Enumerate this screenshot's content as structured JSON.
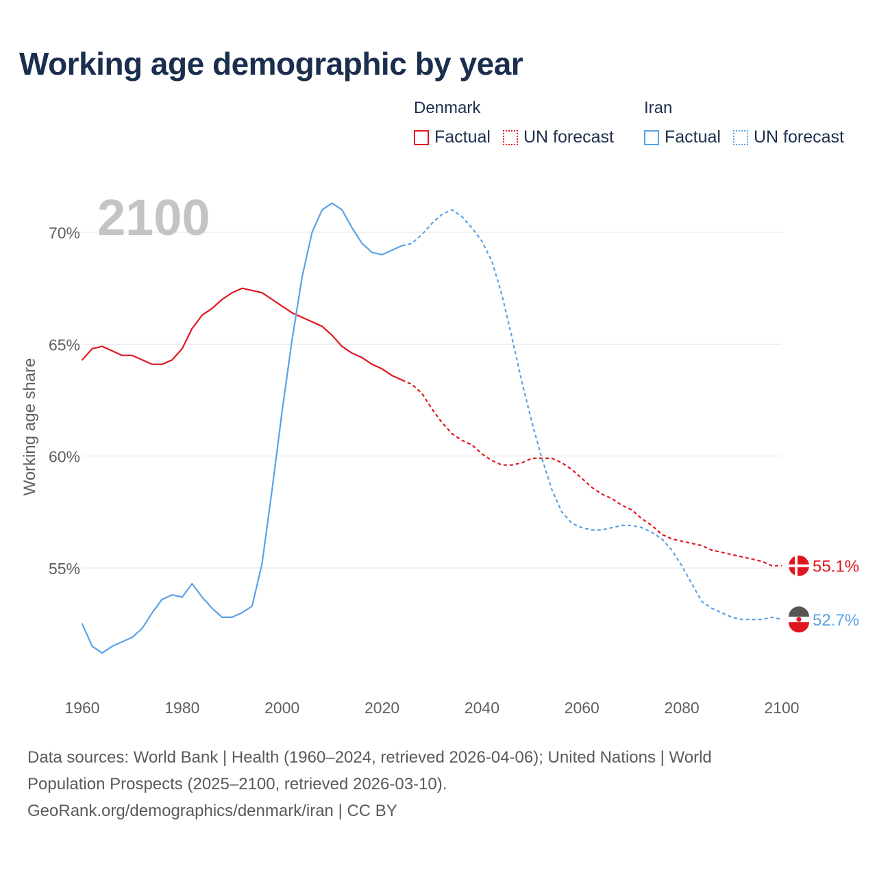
{
  "title": "Working age demographic by year",
  "legend": {
    "groups": [
      {
        "country": "Denmark",
        "color": "#e0161f",
        "factual_label": "Factual",
        "forecast_label": "UN forecast"
      },
      {
        "country": "Iran",
        "color": "#5aa2e6",
        "factual_label": "Factual",
        "forecast_label": "UN forecast"
      }
    ]
  },
  "year_watermark": "2100",
  "footer": {
    "line1": "Data sources: World Bank | Health (1960–2024, retrieved 2026-04-06); United Nations | World",
    "line2": "Population Prospects (2025–2100, retrieved 2026-03-10).",
    "line3": "GeoRank.org/demographics/denmark/iran | CC BY"
  },
  "chart_data": {
    "type": "line",
    "title": "Working age demographic by year",
    "xlabel": "",
    "ylabel": "Working age share",
    "xlim": [
      1960,
      2100
    ],
    "ylim": [
      50.0,
      72.0
    ],
    "x_ticks": [
      1960,
      1980,
      2000,
      2020,
      2040,
      2060,
      2080,
      2100
    ],
    "y_ticks": [
      {
        "value": 55,
        "label": "55%"
      },
      {
        "value": 60,
        "label": "60%"
      },
      {
        "value": 65,
        "label": "65%"
      },
      {
        "value": 70,
        "label": "70%"
      }
    ],
    "grid": true,
    "series": [
      {
        "name": "Denmark",
        "color": "#e0161f",
        "end_label": "55.1%",
        "factual": {
          "x": [
            1960,
            1962,
            1964,
            1966,
            1968,
            1970,
            1972,
            1974,
            1976,
            1978,
            1980,
            1982,
            1984,
            1986,
            1988,
            1990,
            1992,
            1994,
            1996,
            1998,
            2000,
            2002,
            2004,
            2006,
            2008,
            2010,
            2012,
            2014,
            2016,
            2018,
            2020,
            2022,
            2024
          ],
          "y": [
            64.3,
            64.8,
            64.9,
            64.7,
            64.5,
            64.5,
            64.3,
            64.1,
            64.1,
            64.3,
            64.8,
            65.7,
            66.3,
            66.6,
            67.0,
            67.3,
            67.5,
            67.4,
            67.3,
            67.0,
            66.7,
            66.4,
            66.2,
            66.0,
            65.8,
            65.4,
            64.9,
            64.6,
            64.4,
            64.1,
            63.9,
            63.6,
            63.4
          ]
        },
        "forecast": {
          "x": [
            2024,
            2026,
            2028,
            2030,
            2032,
            2034,
            2036,
            2038,
            2040,
            2042,
            2044,
            2046,
            2048,
            2050,
            2052,
            2054,
            2056,
            2058,
            2060,
            2062,
            2064,
            2066,
            2068,
            2070,
            2072,
            2074,
            2076,
            2078,
            2080,
            2082,
            2084,
            2086,
            2088,
            2090,
            2092,
            2094,
            2096,
            2098,
            2100
          ],
          "y": [
            63.4,
            63.2,
            62.8,
            62.1,
            61.5,
            61.0,
            60.7,
            60.5,
            60.1,
            59.8,
            59.6,
            59.6,
            59.7,
            59.9,
            59.9,
            59.9,
            59.7,
            59.4,
            59.0,
            58.6,
            58.3,
            58.1,
            57.8,
            57.6,
            57.2,
            56.9,
            56.5,
            56.3,
            56.2,
            56.1,
            56.0,
            55.8,
            55.7,
            55.6,
            55.5,
            55.4,
            55.3,
            55.1,
            55.1
          ]
        }
      },
      {
        "name": "Iran",
        "color": "#5aa2e6",
        "end_label": "52.7%",
        "factual": {
          "x": [
            1960,
            1962,
            1964,
            1966,
            1968,
            1970,
            1972,
            1974,
            1976,
            1978,
            1980,
            1982,
            1984,
            1986,
            1988,
            1990,
            1992,
            1994,
            1996,
            1998,
            2000,
            2002,
            2004,
            2006,
            2008,
            2010,
            2012,
            2014,
            2016,
            2018,
            2020,
            2022,
            2024
          ],
          "y": [
            52.5,
            51.5,
            51.2,
            51.5,
            51.7,
            51.9,
            52.3,
            53.0,
            53.6,
            53.8,
            53.7,
            54.3,
            53.7,
            53.2,
            52.8,
            52.8,
            53.0,
            53.3,
            55.2,
            58.5,
            62.0,
            65.2,
            68.0,
            70.0,
            71.0,
            71.3,
            71.0,
            70.2,
            69.5,
            69.1,
            69.0,
            69.2,
            69.4
          ]
        },
        "forecast": {
          "x": [
            2024,
            2026,
            2028,
            2030,
            2032,
            2034,
            2036,
            2038,
            2040,
            2042,
            2044,
            2046,
            2048,
            2050,
            2052,
            2054,
            2056,
            2058,
            2060,
            2062,
            2064,
            2066,
            2068,
            2070,
            2072,
            2074,
            2076,
            2078,
            2080,
            2082,
            2084,
            2086,
            2088,
            2090,
            2092,
            2094,
            2096,
            2098,
            2100
          ],
          "y": [
            69.4,
            69.5,
            69.9,
            70.4,
            70.8,
            71.0,
            70.7,
            70.2,
            69.6,
            68.7,
            67.2,
            65.3,
            63.3,
            61.5,
            59.9,
            58.5,
            57.5,
            57.0,
            56.8,
            56.7,
            56.7,
            56.8,
            56.9,
            56.9,
            56.8,
            56.6,
            56.3,
            55.8,
            55.1,
            54.3,
            53.5,
            53.2,
            53.0,
            52.8,
            52.7,
            52.7,
            52.7,
            52.8,
            52.7
          ]
        }
      }
    ]
  }
}
